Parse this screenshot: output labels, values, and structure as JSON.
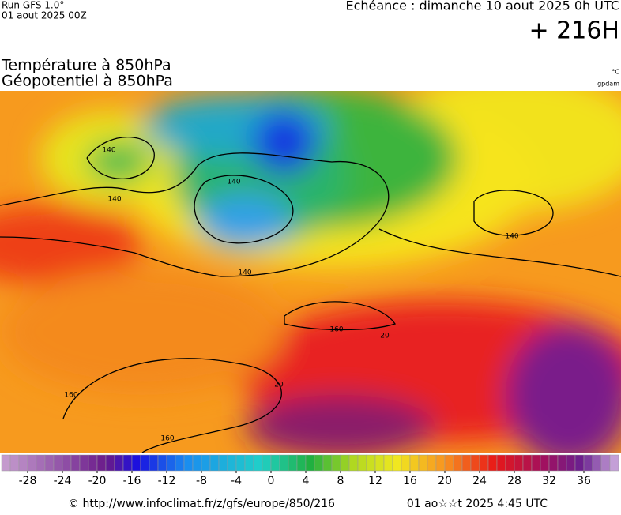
{
  "header": {
    "run": "Run GFS 1.0°",
    "run_date": "01 aout 2025 00Z",
    "valid": "Echéance : dimanche 10 aout 2025 0h UTC",
    "lead": "+ 216H"
  },
  "titles": {
    "temperature": "Température à 850hPa",
    "geopotential": "Géopotentiel à 850hPa",
    "temperature_unit": "°C",
    "geopotential_unit": "gpdam"
  },
  "map": {
    "contour_labels": [
      140,
      140,
      140,
      140,
      140,
      160,
      160,
      160,
      20,
      20
    ]
  },
  "colorbar": {
    "range": [
      -31,
      40
    ],
    "ticks": [
      -28,
      -24,
      -20,
      -16,
      -12,
      -8,
      -4,
      0,
      4,
      8,
      12,
      16,
      20,
      24,
      28,
      32,
      36
    ]
  },
  "footer": {
    "source": "© http://www.infoclimat.fr/z/gfs/europe/850/216",
    "generated": "01 ao☆☆t 2025  4:45 UTC"
  }
}
